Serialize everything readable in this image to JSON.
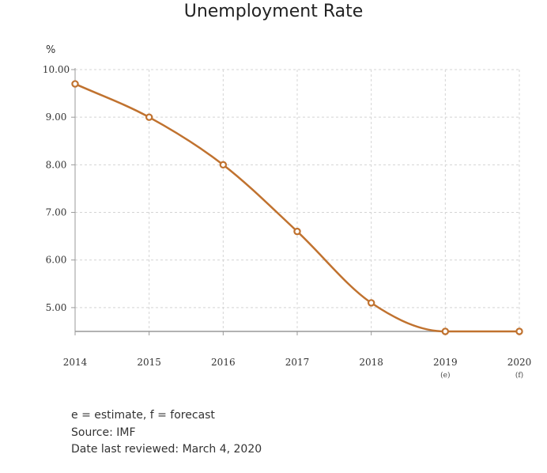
{
  "chart_data": {
    "type": "line",
    "title": "Unemployment Rate",
    "ylabel": "%",
    "x": [
      "2014",
      "2015",
      "2016",
      "2017",
      "2018",
      "2019",
      "2020"
    ],
    "x_sub": [
      "",
      "",
      "",
      "",
      "",
      "(e)",
      "(f)"
    ],
    "series": [
      {
        "values": [
          9.7,
          9.0,
          8.0,
          6.6,
          5.1,
          4.5,
          4.5
        ]
      }
    ],
    "ylim": [
      4.5,
      10.0
    ],
    "yticks": [
      "10.00",
      "9.00",
      "8.00",
      "7.00",
      "6.00",
      "5.00"
    ],
    "grid": true,
    "line_color": "#c0722f"
  },
  "notes": {
    "legend": "e = estimate, f = forecast",
    "source": "Source: IMF",
    "reviewed": "Date last reviewed: March 4, 2020"
  }
}
